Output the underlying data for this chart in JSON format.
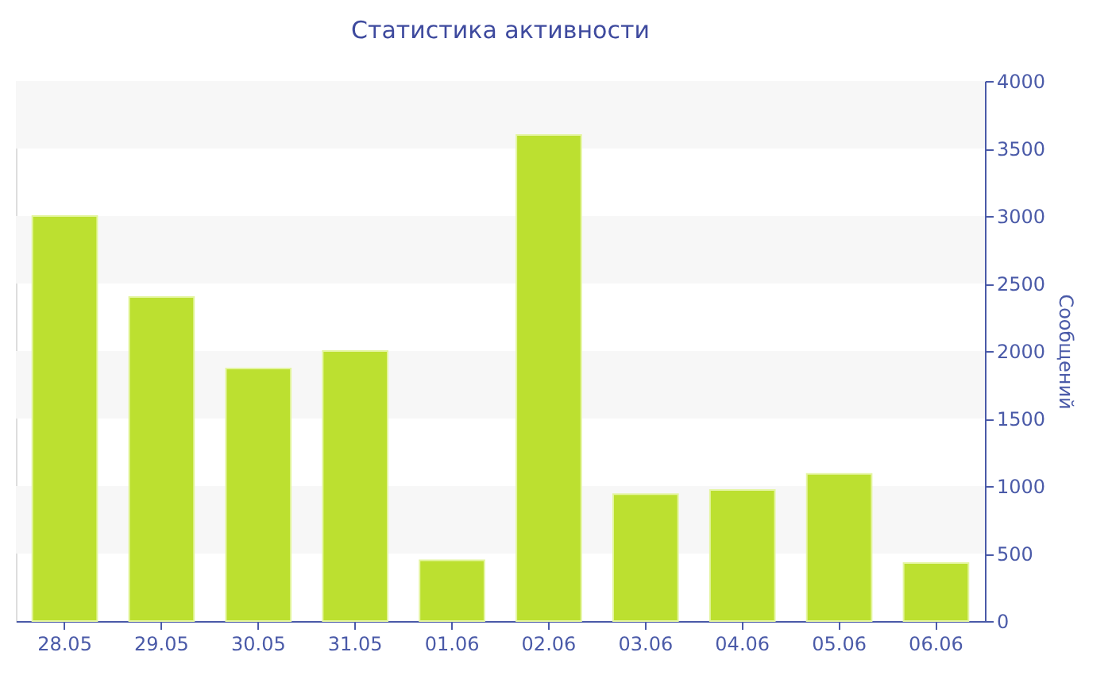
{
  "chart_data": {
    "type": "bar",
    "title": "Статистика активности",
    "ylabel": "Сообщений",
    "categories": [
      "28.05",
      "29.05",
      "30.05",
      "31.05",
      "01.06",
      "02.06",
      "03.06",
      "04.06",
      "05.06",
      "06.06"
    ],
    "values": [
      3000,
      2400,
      1870,
      2000,
      450,
      3600,
      940,
      970,
      1090,
      430
    ],
    "color": "#bce030",
    "ylim": [
      0,
      4000
    ],
    "yticks": [
      0,
      500,
      1000,
      1500,
      2000,
      2500,
      3000,
      3500,
      4000
    ],
    "bands": [
      {
        "axis": "y",
        "from": 500,
        "to": 1000,
        "color": "#f7f7f7"
      },
      {
        "axis": "y",
        "from": 1500,
        "to": 2000,
        "color": "#f7f7f7"
      },
      {
        "axis": "y",
        "from": 2500,
        "to": 3000,
        "color": "#f7f7f7"
      },
      {
        "axis": "y",
        "from": 3500,
        "to": 4000,
        "color": "#f7f7f7"
      }
    ],
    "grid": false
  }
}
